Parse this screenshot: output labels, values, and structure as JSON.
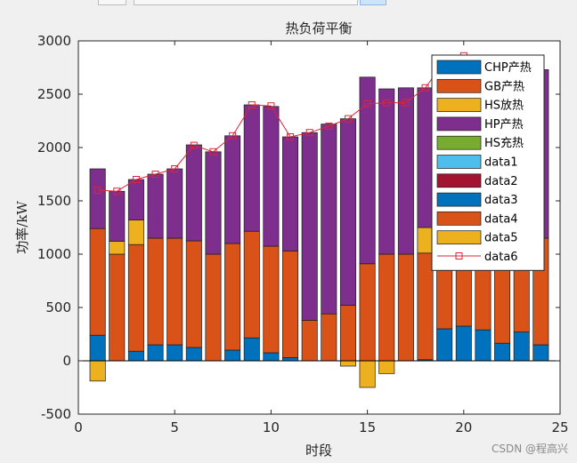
{
  "chart_data": {
    "type": "bar",
    "subtype": "stacked",
    "title": "热负荷平衡",
    "xlabel": "时段",
    "ylabel": "功率/kW",
    "xlim": [
      0,
      25
    ],
    "ylim": [
      -500,
      3000
    ],
    "xticks": [
      0,
      5,
      10,
      15,
      20,
      25
    ],
    "yticks": [
      -500,
      0,
      500,
      1000,
      1500,
      2000,
      2500,
      3000
    ],
    "grid": false,
    "legend_position": "top-right",
    "x": [
      1,
      2,
      3,
      4,
      5,
      6,
      7,
      8,
      9,
      10,
      11,
      12,
      13,
      14,
      15,
      16,
      17,
      18,
      19,
      20,
      21,
      22,
      23,
      24
    ],
    "series": [
      {
        "name": "CHP产热",
        "color": "#0072BD",
        "values": [
          240,
          0,
          90,
          150,
          150,
          125,
          0,
          100,
          215,
          75,
          30,
          0,
          0,
          0,
          0,
          0,
          0,
          10,
          300,
          325,
          290,
          165,
          270,
          150
        ]
      },
      {
        "name": "GB产热",
        "color": "#D95319",
        "values": [
          1000,
          1000,
          1000,
          1000,
          1000,
          1000,
          1000,
          1000,
          1000,
          1000,
          1000,
          380,
          440,
          520,
          910,
          1000,
          1000,
          1000,
          1000,
          1000,
          1000,
          1000,
          1000,
          1000
        ]
      },
      {
        "name": "HS放热",
        "color": "#EDB120",
        "values": [
          0,
          120,
          230,
          0,
          0,
          0,
          0,
          0,
          0,
          0,
          0,
          0,
          0,
          0,
          0,
          0,
          0,
          240,
          0,
          0,
          0,
          0,
          0,
          0
        ]
      },
      {
        "name": "HP产热",
        "color": "#7E2F8E",
        "values": [
          560,
          470,
          380,
          600,
          650,
          900,
          960,
          1010,
          1185,
          1310,
          1070,
          1760,
          1780,
          1750,
          1750,
          1550,
          1560,
          1310,
          1500,
          1540,
          1550,
          1640,
          1550,
          1580
        ]
      },
      {
        "name": "HS充热",
        "color": "#77AC30",
        "values": [
          0,
          0,
          0,
          0,
          0,
          0,
          0,
          0,
          0,
          0,
          0,
          0,
          0,
          0,
          0,
          0,
          0,
          0,
          0,
          0,
          0,
          0,
          0,
          0
        ]
      },
      {
        "name": "data1",
        "color": "#4DBEEE",
        "values": [
          0,
          0,
          0,
          0,
          0,
          0,
          0,
          0,
          0,
          0,
          0,
          0,
          0,
          0,
          0,
          0,
          0,
          0,
          0,
          0,
          0,
          0,
          0,
          0
        ]
      },
      {
        "name": "data2",
        "color": "#A2142F",
        "values": [
          0,
          0,
          0,
          0,
          0,
          0,
          0,
          0,
          0,
          0,
          0,
          0,
          0,
          0,
          0,
          0,
          0,
          0,
          0,
          0,
          0,
          0,
          0,
          0
        ]
      },
      {
        "name": "data3",
        "color": "#0072BD",
        "values": [
          0,
          0,
          0,
          0,
          0,
          0,
          0,
          0,
          0,
          0,
          0,
          0,
          0,
          0,
          0,
          0,
          0,
          0,
          0,
          0,
          0,
          0,
          0,
          0
        ]
      },
      {
        "name": "data4",
        "color": "#D95319",
        "values": [
          0,
          0,
          0,
          0,
          0,
          0,
          0,
          0,
          0,
          0,
          0,
          0,
          0,
          0,
          0,
          0,
          0,
          0,
          0,
          0,
          0,
          0,
          0,
          0
        ]
      },
      {
        "name": "data5",
        "color": "#EDB120",
        "values": [
          -190,
          0,
          0,
          0,
          0,
          0,
          0,
          0,
          0,
          0,
          0,
          0,
          0,
          0,
          0,
          0,
          0,
          0,
          0,
          0,
          0,
          0,
          0,
          0
        ]
      }
    ],
    "neg_overrides": {
      "14": -50,
      "15": -250,
      "16": -120
    },
    "line": {
      "name": "data6",
      "color": "#D9263A",
      "marker": "square",
      "values": [
        1600,
        1590,
        1700,
        1750,
        1800,
        2020,
        1960,
        2110,
        2400,
        2390,
        2100,
        2140,
        2200,
        2270,
        2410,
        2420,
        2420,
        2560,
        2800,
        2860,
        2830,
        2810,
        2820,
        2730
      ]
    }
  },
  "watermark": "CSDN @程高兴"
}
